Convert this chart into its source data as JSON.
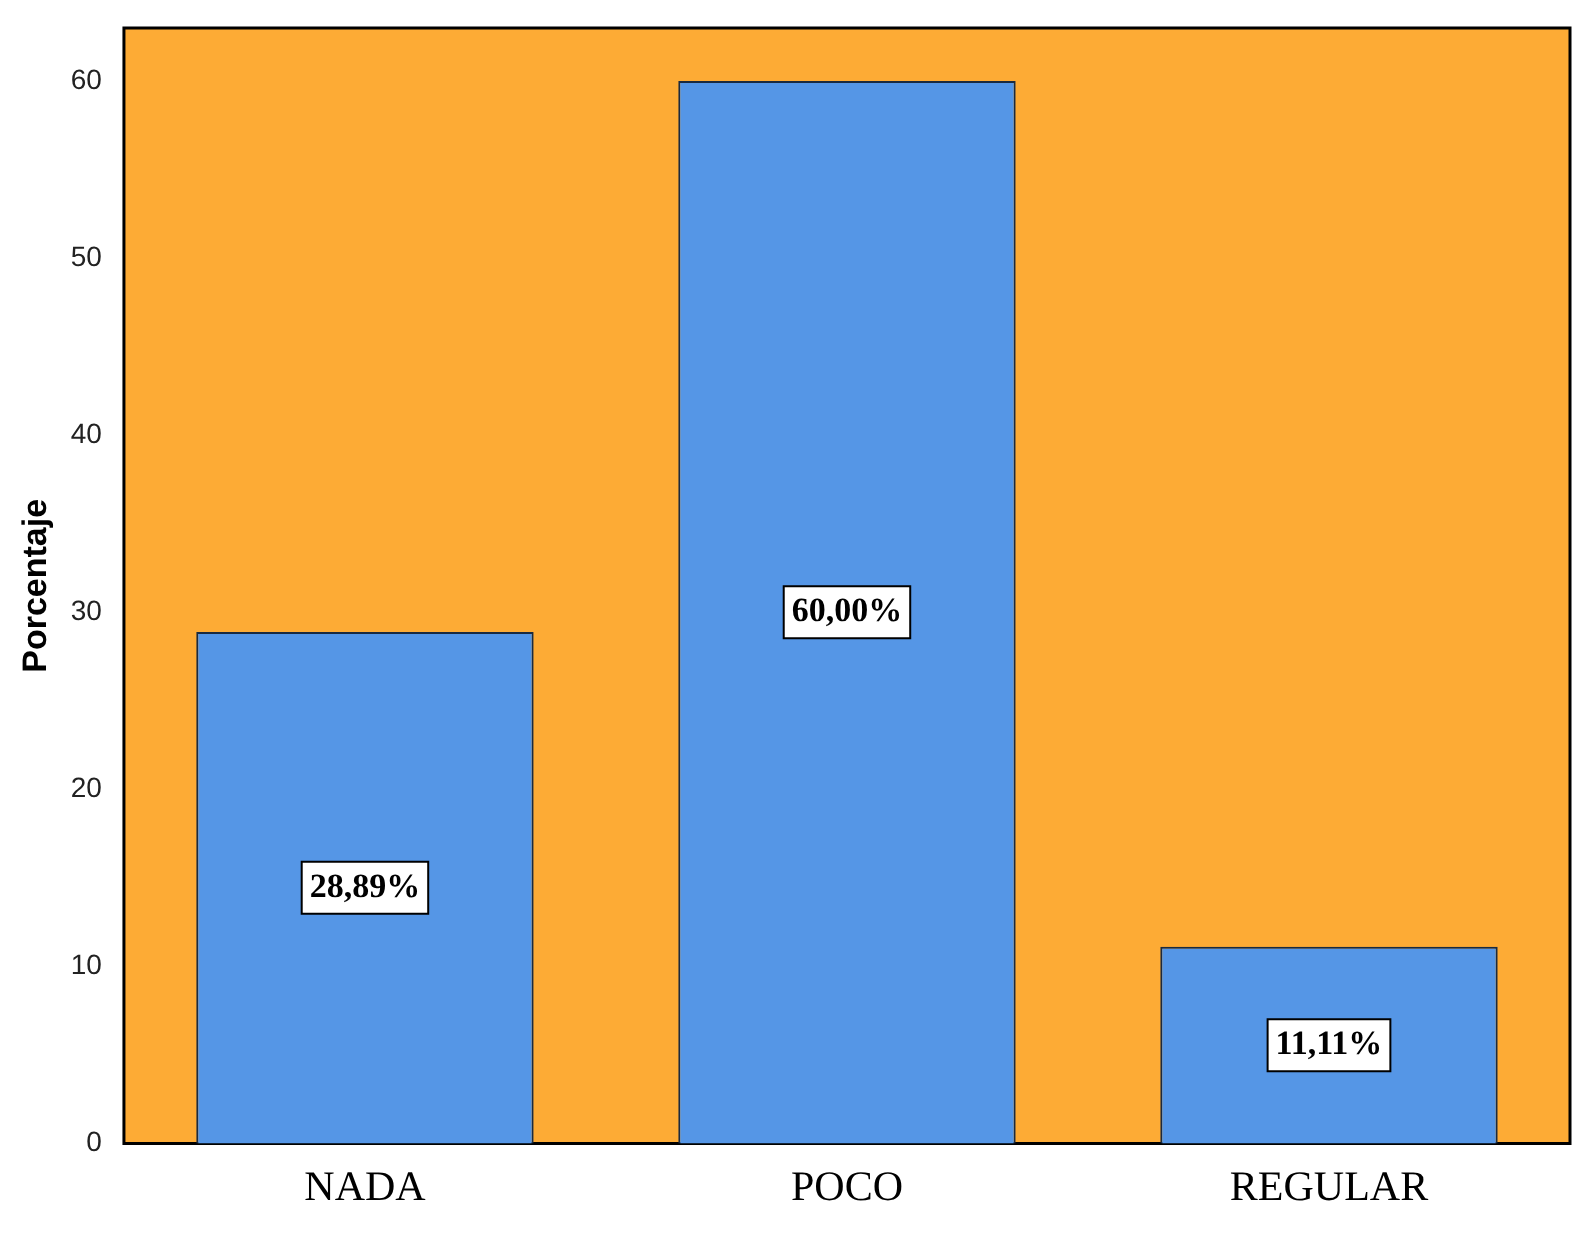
{
  "chart_data": {
    "type": "bar",
    "ylabel": "Porcentaje",
    "categories": [
      "NADA",
      "POCO",
      "REGULAR"
    ],
    "values": [
      28.89,
      60,
      11.11
    ],
    "color": "#5596e6",
    "value_labels": [
      "28,89%",
      "60,00%",
      "11,11%"
    ],
    "ylim": [
      0,
      63
    ],
    "yticks": [
      0,
      10,
      20,
      30,
      40,
      50,
      60
    ],
    "grid": false,
    "legend": false
  }
}
